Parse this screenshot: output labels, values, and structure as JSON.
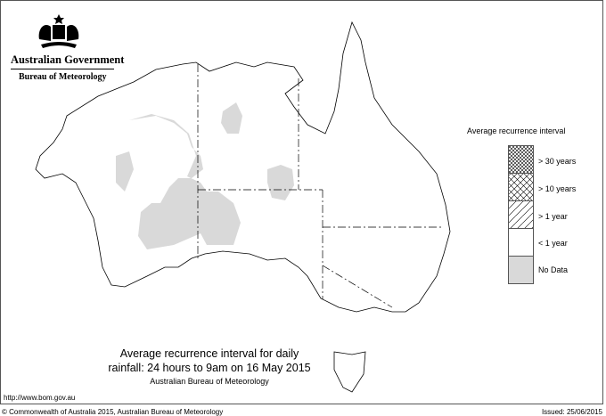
{
  "header": {
    "government": "Australian Government",
    "agency": "Bureau of Meteorology"
  },
  "title": {
    "line1": "Average recurrence interval for daily",
    "line2": "rainfall: 24 hours to 9am on 16 May 2015",
    "line3": "Australian Bureau of Meteorology"
  },
  "legend": {
    "title": "Average recurrence interval",
    "items": [
      {
        "label": "> 30 years",
        "pattern": "fine-crosshatch"
      },
      {
        "label": "> 10 years",
        "pattern": "crosshatch"
      },
      {
        "label": "> 1 year",
        "pattern": "diagonal-hatch"
      },
      {
        "label": "< 1 year",
        "pattern": "none",
        "color": "#ffffff"
      },
      {
        "label": "No Data",
        "pattern": "solid",
        "color": "#d9d9d9"
      }
    ]
  },
  "footer": {
    "url": "http://www.bom.gov.au",
    "copyright": "© Commonwealth of Australia 2015, Australian Bureau of Meteorology",
    "issued": "Issued: 25/06/2015"
  },
  "colors": {
    "nodata": "#d9d9d9",
    "outline": "#000000"
  }
}
